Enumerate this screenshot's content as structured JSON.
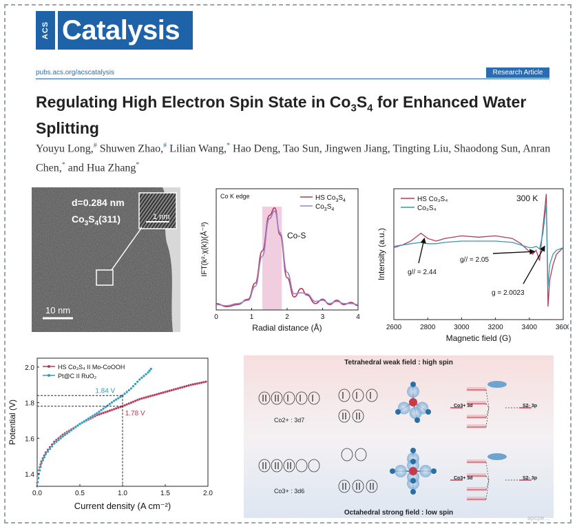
{
  "journal": {
    "acs_mark": "ACS",
    "name": "Catalysis",
    "url": "pubs.acs.org/acscatalysis",
    "article_type": "Research Article",
    "brand_color": "#1e63a8"
  },
  "paper": {
    "title_parts": [
      "Regulating High Electron Spin State in Co",
      "3",
      "S",
      "4",
      " for Enhanced Water Splitting"
    ],
    "authors": [
      {
        "name": "Youyu Long,",
        "mark": "#"
      },
      {
        "name": " Shuwen Zhao,",
        "mark": "#"
      },
      {
        "name": " Lilian Wang,",
        "mark": "*"
      },
      {
        "name": " Hao Deng, Tao Sun, Jingwen Jiang, Tingting Liu, Shaodong Sun, Anran Chen,",
        "mark": "*"
      },
      {
        "name": " and Hua Zhang",
        "mark": "*"
      }
    ]
  },
  "tem": {
    "spacing_label": "d=0.284 nm",
    "plane_label_parts": [
      "Co",
      "3",
      "S",
      "4",
      "(311)"
    ],
    "inset_scale": "1 nm",
    "scale_bar": "10 nm"
  },
  "figures": {
    "ft": {
      "title": "Co K edge",
      "region_label": "Co-S",
      "highlight_color": "#e9b9d3"
    },
    "epr": {
      "temp": "300 K",
      "annotations": [
        "g// = 2.44",
        "g// = 2.05",
        "g = 2.0023"
      ]
    },
    "lsv": {
      "annotation_high": "1.84 V",
      "annotation_low": "1.78 V"
    },
    "crystal_field": {
      "top_title": "Tetrahedral weak field : high spin",
      "bottom_title": "Octahedral strong field : low spin",
      "ion_top": "Co2+ :  3d7",
      "ion_bottom": "Co3+ :  3d6",
      "co_label": "Co3+ 3d",
      "s_label": "S2- 3p",
      "bg_color": "#f6dede"
    }
  },
  "chart_data": [
    {
      "type": "line",
      "title": "Co K edge",
      "xlabel": "Radial distance (Å)",
      "ylabel": "IFT(k²·χ(k))(Å⁻³)",
      "xlim": [
        0,
        4
      ],
      "xticks": [
        0,
        1,
        2,
        3,
        4
      ],
      "highlight_range": [
        1.3,
        1.85
      ],
      "series": [
        {
          "name": "HS Co3S4",
          "color": "#b23a57",
          "x": [
            0,
            0.3,
            0.6,
            0.9,
            1.1,
            1.3,
            1.5,
            1.65,
            1.8,
            2.0,
            2.2,
            2.4,
            2.55,
            2.8,
            3.0,
            3.2,
            3.4,
            3.6,
            3.8,
            4.0
          ],
          "y": [
            0.06,
            0.03,
            0.05,
            0.1,
            0.25,
            0.55,
            0.88,
            0.95,
            0.7,
            0.3,
            0.12,
            0.2,
            0.14,
            0.06,
            0.1,
            0.05,
            0.09,
            0.05,
            0.07,
            0.04
          ]
        },
        {
          "name": "Co3S4",
          "color": "#9b7fc7",
          "x": [
            0,
            0.3,
            0.6,
            0.9,
            1.1,
            1.3,
            1.5,
            1.65,
            1.8,
            2.0,
            2.2,
            2.4,
            2.55,
            2.8,
            3.0,
            3.2,
            3.4,
            3.6,
            3.8,
            4.0
          ],
          "y": [
            0.05,
            0.04,
            0.06,
            0.09,
            0.22,
            0.5,
            0.85,
            0.92,
            0.72,
            0.35,
            0.15,
            0.16,
            0.15,
            0.08,
            0.09,
            0.06,
            0.08,
            0.06,
            0.06,
            0.05
          ]
        }
      ]
    },
    {
      "type": "line",
      "xlabel": "Magnetic field (G)",
      "ylabel": "Intensity (a.u.)",
      "xlim": [
        2600,
        3600
      ],
      "xticks": [
        2600,
        2800,
        3000,
        3200,
        3400,
        3600
      ],
      "series": [
        {
          "name": "HS Co3S4",
          "color": "#b23a57",
          "x": [
            2600,
            2650,
            2700,
            2760,
            2800,
            2850,
            2900,
            3000,
            3100,
            3200,
            3300,
            3350,
            3400,
            3420,
            3440,
            3460,
            3480,
            3500,
            3510,
            3520,
            3540,
            3560,
            3600
          ],
          "y": [
            0.55,
            0.57,
            0.6,
            0.66,
            0.62,
            0.6,
            0.62,
            0.64,
            0.63,
            0.64,
            0.62,
            0.58,
            0.52,
            0.5,
            0.53,
            0.45,
            0.7,
            0.96,
            0.1,
            0.3,
            0.42,
            0.5,
            0.55
          ]
        },
        {
          "name": "Co3S4",
          "color": "#2f9bb8",
          "x": [
            2600,
            2650,
            2700,
            2760,
            2800,
            2850,
            2900,
            3000,
            3100,
            3200,
            3300,
            3350,
            3400,
            3420,
            3440,
            3460,
            3480,
            3500,
            3510,
            3520,
            3540,
            3560,
            3600
          ],
          "y": [
            0.56,
            0.57,
            0.58,
            0.59,
            0.58,
            0.58,
            0.59,
            0.6,
            0.6,
            0.6,
            0.59,
            0.57,
            0.55,
            0.55,
            0.56,
            0.54,
            0.66,
            0.88,
            0.25,
            0.42,
            0.5,
            0.53,
            0.55
          ]
        }
      ]
    },
    {
      "type": "scatter",
      "xlabel": "Current density (A cm⁻²)",
      "ylabel": "Potential (V)",
      "xlim": [
        0,
        2.0
      ],
      "ylim": [
        1.33,
        2.05
      ],
      "xticks": [
        0.0,
        0.5,
        1.0,
        1.5,
        2.0
      ],
      "yticks": [
        1.4,
        1.6,
        1.8,
        2.0
      ],
      "ref_points": [
        {
          "x": 1.0,
          "y": 1.84
        },
        {
          "x": 1.0,
          "y": 1.78
        }
      ],
      "series": [
        {
          "name": "HS Co3S4 II Mo-CoOOH",
          "color": "#b23a57",
          "x": [
            0,
            0.02,
            0.05,
            0.1,
            0.2,
            0.3,
            0.5,
            0.7,
            1.0,
            1.2,
            1.5,
            1.8,
            2.0
          ],
          "y": [
            1.35,
            1.42,
            1.47,
            1.52,
            1.58,
            1.62,
            1.68,
            1.73,
            1.78,
            1.82,
            1.86,
            1.9,
            1.92
          ]
        },
        {
          "name": "Pt@C II RuO2",
          "color": "#2f9bb8",
          "x": [
            0,
            0.02,
            0.05,
            0.1,
            0.2,
            0.3,
            0.5,
            0.7,
            0.9,
            1.0,
            1.1,
            1.2,
            1.3,
            1.35
          ],
          "y": [
            1.33,
            1.4,
            1.46,
            1.51,
            1.57,
            1.61,
            1.68,
            1.74,
            1.81,
            1.84,
            1.88,
            1.93,
            1.97,
            2.0
          ]
        }
      ]
    }
  ]
}
